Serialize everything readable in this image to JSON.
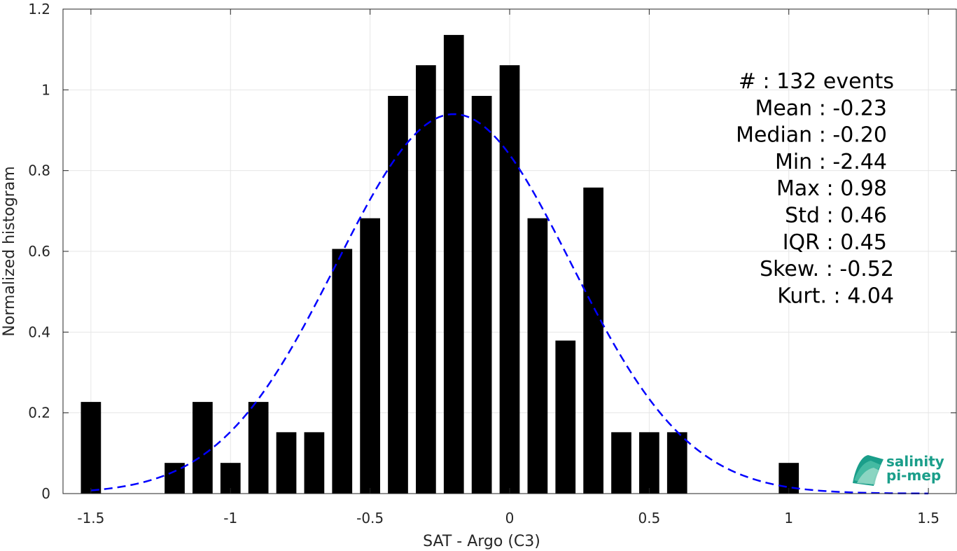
{
  "chart_data": {
    "type": "bar",
    "xlabel": "SAT - Argo (C3)",
    "ylabel": "Normalized histogram",
    "xlim": [
      -1.6,
      1.6
    ],
    "ylim": [
      0,
      1.2
    ],
    "xticks": [
      -1.5,
      -1,
      -0.5,
      0,
      0.5,
      1,
      1.5
    ],
    "xtick_labels": [
      "-1.5",
      "-1",
      "-0.5",
      "0",
      "0.5",
      "1",
      "1.5"
    ],
    "yticks": [
      0,
      0.2,
      0.4,
      0.6,
      0.8,
      1,
      1.2
    ],
    "ytick_labels": [
      "0",
      "0.2",
      "0.4",
      "0.6",
      "0.8",
      "1",
      "1.2"
    ],
    "grid": true,
    "bar_color": "#000000",
    "bin_width": 0.1,
    "bar_width_fraction": 0.72,
    "bars": {
      "x": [
        -1.5,
        -1.2,
        -1.1,
        -1.0,
        -0.9,
        -0.8,
        -0.7,
        -0.6,
        -0.5,
        -0.4,
        -0.3,
        -0.2,
        -0.1,
        0.0,
        0.1,
        0.2,
        0.3,
        0.4,
        0.5,
        0.6,
        1.0
      ],
      "values": [
        0.227,
        0.076,
        0.227,
        0.076,
        0.227,
        0.152,
        0.152,
        0.606,
        0.682,
        0.985,
        1.061,
        1.136,
        0.985,
        1.061,
        0.682,
        0.379,
        0.758,
        0.152,
        0.152,
        0.152,
        0.076
      ]
    },
    "fit_curve": {
      "style": "dashed",
      "color": "#0000ff",
      "mean": -0.2,
      "std": 0.42,
      "peak": 0.94,
      "x_range": [
        -1.5,
        1.5
      ]
    },
    "stats_lines": [
      "#  : 132 events",
      "Mean : -0.23",
      "Median : -0.20",
      "Min : -2.44",
      "Max : 0.98",
      "Std : 0.46",
      "IQR : 0.45",
      "Skew. : -0.52",
      "Kurt. : 4.04"
    ]
  },
  "logo": {
    "line1": "salinity",
    "line2": "pi-mep",
    "color": "#1a9e8a"
  }
}
